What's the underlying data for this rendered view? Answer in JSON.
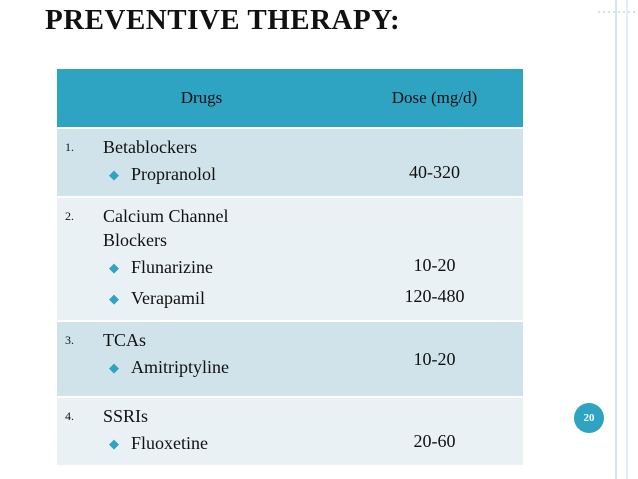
{
  "header": {
    "title": "PREVENTIVE THERAPY:"
  },
  "table": {
    "columns": [
      "Drugs",
      "Dose (mg/d)"
    ],
    "rows": [
      {
        "number": "1.",
        "name": "Betablockers",
        "items": [
          "Propranolol"
        ],
        "doses": [
          "40-320"
        ]
      },
      {
        "number": "2.",
        "name": "Calcium Channel Blockers",
        "items": [
          "Flunarizine",
          "Verapamil"
        ],
        "doses": [
          "10-20",
          "120-480"
        ]
      },
      {
        "number": "3.",
        "name": "TCAs",
        "items": [
          "Amitriptyline"
        ],
        "doses": [
          "10-20"
        ]
      },
      {
        "number": "4.",
        "name": "SSRIs",
        "items": [
          "Fluoxetine"
        ],
        "doses": [
          "20-60"
        ]
      }
    ]
  },
  "page_number": "20"
}
